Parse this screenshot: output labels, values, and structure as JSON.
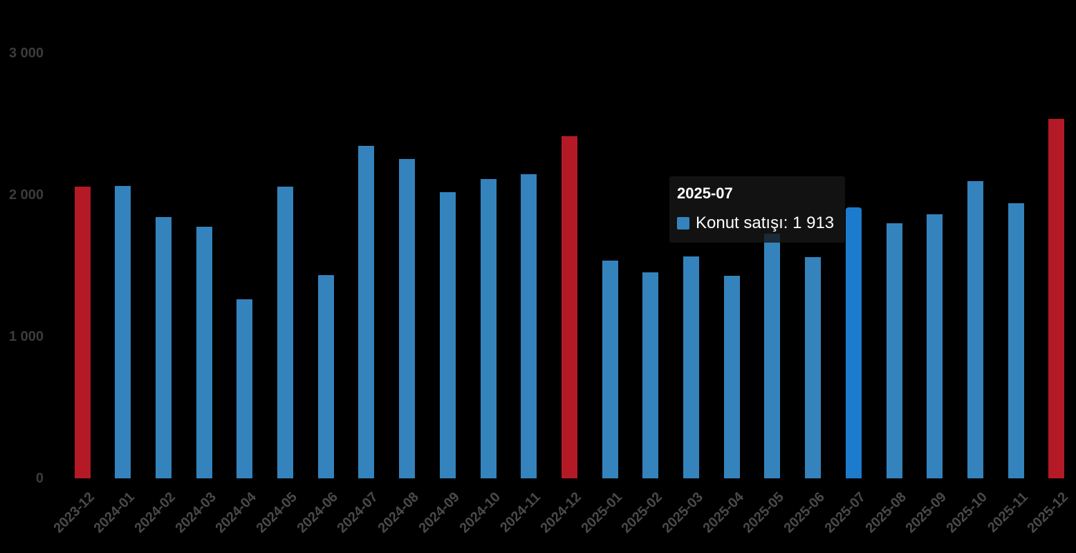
{
  "chart_data": {
    "type": "bar",
    "title": "",
    "xlabel": "",
    "ylabel": "",
    "grid": false,
    "legend_position": "none",
    "ylim": [
      0,
      3000
    ],
    "yticks": [
      0,
      1000,
      2000,
      3000
    ],
    "ytick_labels": [
      "0",
      "1 000",
      "2 000",
      "3 000"
    ],
    "categories": [
      "2023-12",
      "2024-01",
      "2024-02",
      "2024-03",
      "2024-04",
      "2024-05",
      "2024-06",
      "2024-07",
      "2024-08",
      "2024-09",
      "2024-10",
      "2024-11",
      "2024-12",
      "2025-01",
      "2025-02",
      "2025-03",
      "2025-04",
      "2025-05",
      "2025-06",
      "2025-07",
      "2025-08",
      "2025-09",
      "2025-10",
      "2025-11",
      "2025-12"
    ],
    "series": [
      {
        "name": "Konut satışı",
        "values": [
          2060,
          2062,
          1845,
          1776,
          1265,
          2060,
          1432,
          2345,
          2252,
          2018,
          2113,
          2147,
          2414,
          1537,
          1452,
          1568,
          1430,
          1728,
          1560,
          1913,
          1801,
          1864,
          2100,
          1940,
          2535
        ]
      }
    ],
    "highlight_categories": [
      "2023-12",
      "2024-12",
      "2025-12"
    ],
    "hovered_category": "2025-07",
    "colors": {
      "bar_blue": "#3583bc",
      "bar_red": "#b41a26",
      "bar_hover_blue": "#1d7bcd",
      "background": "#000000",
      "y_label": "#3c3c3c",
      "x_label": "#4a4a4a",
      "tooltip_text": "#ffffff"
    }
  },
  "tooltip": {
    "header": "2025-07",
    "series_name": "Konut satışı",
    "value": "1 913",
    "value_line": "Konut satışı: 1 913",
    "marker_color": "#3583bc"
  }
}
